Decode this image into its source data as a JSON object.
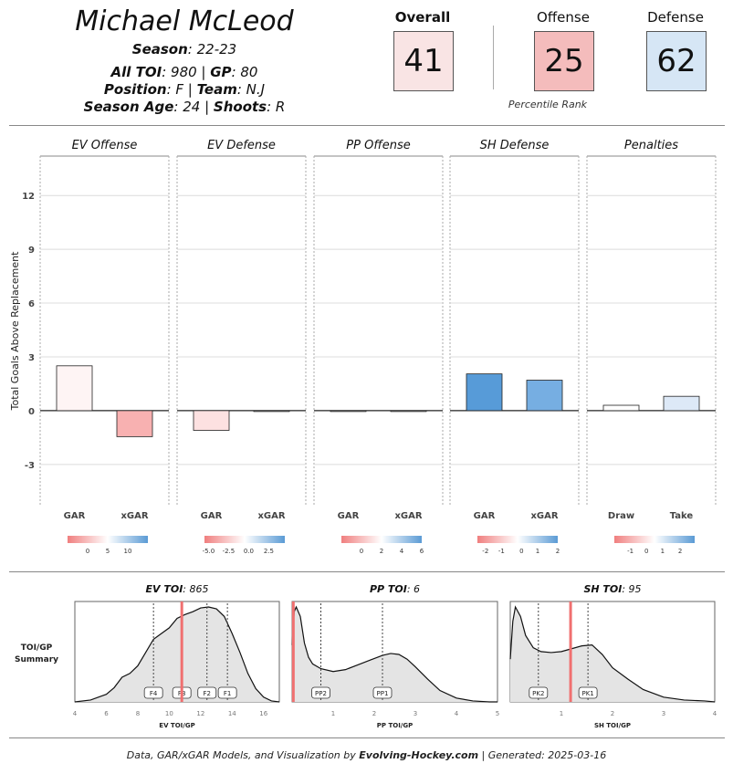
{
  "header": {
    "player_name": "Michael McLeod",
    "season_label": "Season",
    "season_value": ": 22-23",
    "toi_label": "All TOI",
    "toi_value": ": 980 | ",
    "gp_label": "GP",
    "gp_value": ": 80",
    "position_label": "Position",
    "position_value": ": F | ",
    "team_label": "Team",
    "team_value": ": N.J",
    "age_label": "Season Age",
    "age_value": ": 24 | ",
    "shoots_label": "Shoots",
    "shoots_value": ": R"
  },
  "ranks": {
    "overall_label": "Overall",
    "overall_value": "41",
    "overall_color": "#f9e4e4",
    "offense_label": "Offense",
    "offense_value": "25",
    "offense_color": "#f4bcbc",
    "defense_label": "Defense",
    "defense_value": "62",
    "defense_color": "#d6e6f5",
    "caption": "Percentile Rank"
  },
  "chart_data": [
    {
      "type": "bar",
      "ylabel": "Total Goals Above Replacement",
      "ylim": [
        -5.3,
        14.2
      ],
      "yticks": [
        -3,
        0,
        3,
        6,
        9,
        12
      ],
      "grid": true,
      "panels": [
        {
          "title": "EV Offense",
          "categories": [
            "GAR",
            "xGAR"
          ],
          "values": [
            2.5,
            -1.45
          ],
          "colors": [
            "#fef4f4",
            "#f8b1b1"
          ],
          "legend_ticks": [
            "0",
            "5",
            "10"
          ],
          "legend_tick_pos": [
            0.25,
            0.5,
            0.75
          ]
        },
        {
          "title": "EV Defense",
          "categories": [
            "GAR",
            "xGAR"
          ],
          "values": [
            -1.1,
            -0.05
          ],
          "colors": [
            "#fde1e1",
            "#f5f5f5"
          ],
          "legend_ticks": [
            "-5.0",
            "-2.5",
            "0.0",
            "2.5"
          ],
          "legend_tick_pos": [
            0.05,
            0.3,
            0.55,
            0.8
          ]
        },
        {
          "title": "PP Offense",
          "categories": [
            "GAR",
            "xGAR"
          ],
          "values": [
            -0.03,
            -0.05
          ],
          "colors": [
            "#f5f5f5",
            "#f5f5f5"
          ],
          "legend_ticks": [
            "0",
            "2",
            "4",
            "6"
          ],
          "legend_tick_pos": [
            0.25,
            0.5,
            0.75,
            1.0
          ]
        },
        {
          "title": "SH Defense",
          "categories": [
            "GAR",
            "xGAR"
          ],
          "values": [
            2.05,
            1.7
          ],
          "colors": [
            "#579bd8",
            "#76aee2"
          ],
          "legend_ticks": [
            "-2",
            "-1",
            "0",
            "1",
            "2"
          ],
          "legend_tick_pos": [
            0.1,
            0.3,
            0.55,
            0.75,
            1.0
          ]
        },
        {
          "title": "Penalties",
          "categories": [
            "Draw",
            "Take"
          ],
          "values": [
            0.3,
            0.8
          ],
          "colors": [
            "#ffffff",
            "#dde9f7"
          ],
          "legend_ticks": [
            "-1",
            "0",
            "1",
            "2"
          ],
          "legend_tick_pos": [
            0.2,
            0.4,
            0.6,
            0.82
          ]
        }
      ]
    },
    {
      "type": "area",
      "summary_label": "TOI/GP\nSummary",
      "panels": [
        {
          "title_bold": "EV TOI",
          "title_value": ": 865",
          "xlabel": "EV TOI/GP",
          "xlim": [
            4,
            17
          ],
          "xticks": [
            4,
            6,
            8,
            10,
            12,
            14,
            16
          ],
          "player_value": 10.8,
          "markers": [
            {
              "label": "F4",
              "x": 9.0
            },
            {
              "label": "F3",
              "x": 10.8
            },
            {
              "label": "F2",
              "x": 12.4
            },
            {
              "label": "F1",
              "x": 13.7
            }
          ],
          "density_x": [
            4,
            5,
            6,
            6.5,
            7,
            7.5,
            8,
            8.5,
            9,
            9.5,
            10,
            10.5,
            11,
            11.5,
            12,
            12.5,
            13,
            13.5,
            14,
            14.5,
            15,
            15.5,
            16,
            16.5,
            17
          ],
          "density_y": [
            0.0,
            0.02,
            0.08,
            0.15,
            0.26,
            0.3,
            0.38,
            0.52,
            0.66,
            0.72,
            0.78,
            0.88,
            0.92,
            0.95,
            0.99,
            1.0,
            0.98,
            0.9,
            0.72,
            0.52,
            0.3,
            0.14,
            0.05,
            0.01,
            0.0
          ]
        },
        {
          "title_bold": "PP TOI",
          "title_value": ": 6",
          "xlabel": "PP TOI/GP",
          "xlim": [
            0,
            5
          ],
          "xticks": [
            1,
            2,
            3,
            4,
            5
          ],
          "player_value": 0.03,
          "markers": [
            {
              "label": "PP2",
              "x": 0.7
            },
            {
              "label": "PP1",
              "x": 2.2
            }
          ],
          "density_x": [
            0,
            0.05,
            0.1,
            0.2,
            0.3,
            0.4,
            0.5,
            0.7,
            1.0,
            1.3,
            1.6,
            1.9,
            2.2,
            2.4,
            2.6,
            2.8,
            3.0,
            3.3,
            3.6,
            4.0,
            4.4,
            4.8,
            5.0
          ],
          "density_y": [
            0.6,
            0.95,
            1.0,
            0.9,
            0.62,
            0.47,
            0.4,
            0.35,
            0.32,
            0.34,
            0.39,
            0.44,
            0.49,
            0.51,
            0.5,
            0.45,
            0.37,
            0.24,
            0.12,
            0.04,
            0.01,
            0.0,
            0.0
          ]
        },
        {
          "title_bold": "SH TOI",
          "title_value": ": 95",
          "xlabel": "SH TOI/GP",
          "xlim": [
            0,
            4
          ],
          "xticks": [
            1,
            2,
            3,
            4
          ],
          "player_value": 1.18,
          "markers": [
            {
              "label": "PK2",
              "x": 0.55
            },
            {
              "label": "PK1",
              "x": 1.52
            }
          ],
          "density_x": [
            0,
            0.05,
            0.1,
            0.2,
            0.3,
            0.45,
            0.6,
            0.8,
            1.0,
            1.2,
            1.4,
            1.6,
            1.8,
            2.0,
            2.3,
            2.6,
            3.0,
            3.4,
            3.8,
            4.0
          ],
          "density_y": [
            0.45,
            0.85,
            1.0,
            0.9,
            0.7,
            0.57,
            0.53,
            0.52,
            0.53,
            0.56,
            0.59,
            0.6,
            0.5,
            0.36,
            0.24,
            0.13,
            0.05,
            0.02,
            0.01,
            0.0
          ]
        }
      ]
    }
  ],
  "footer": {
    "prefix": "Data, GAR/xGAR Models, and Visualization by ",
    "brand": "Evolving-Hockey.com",
    "suffix": " | Generated: 2025-03-16"
  }
}
